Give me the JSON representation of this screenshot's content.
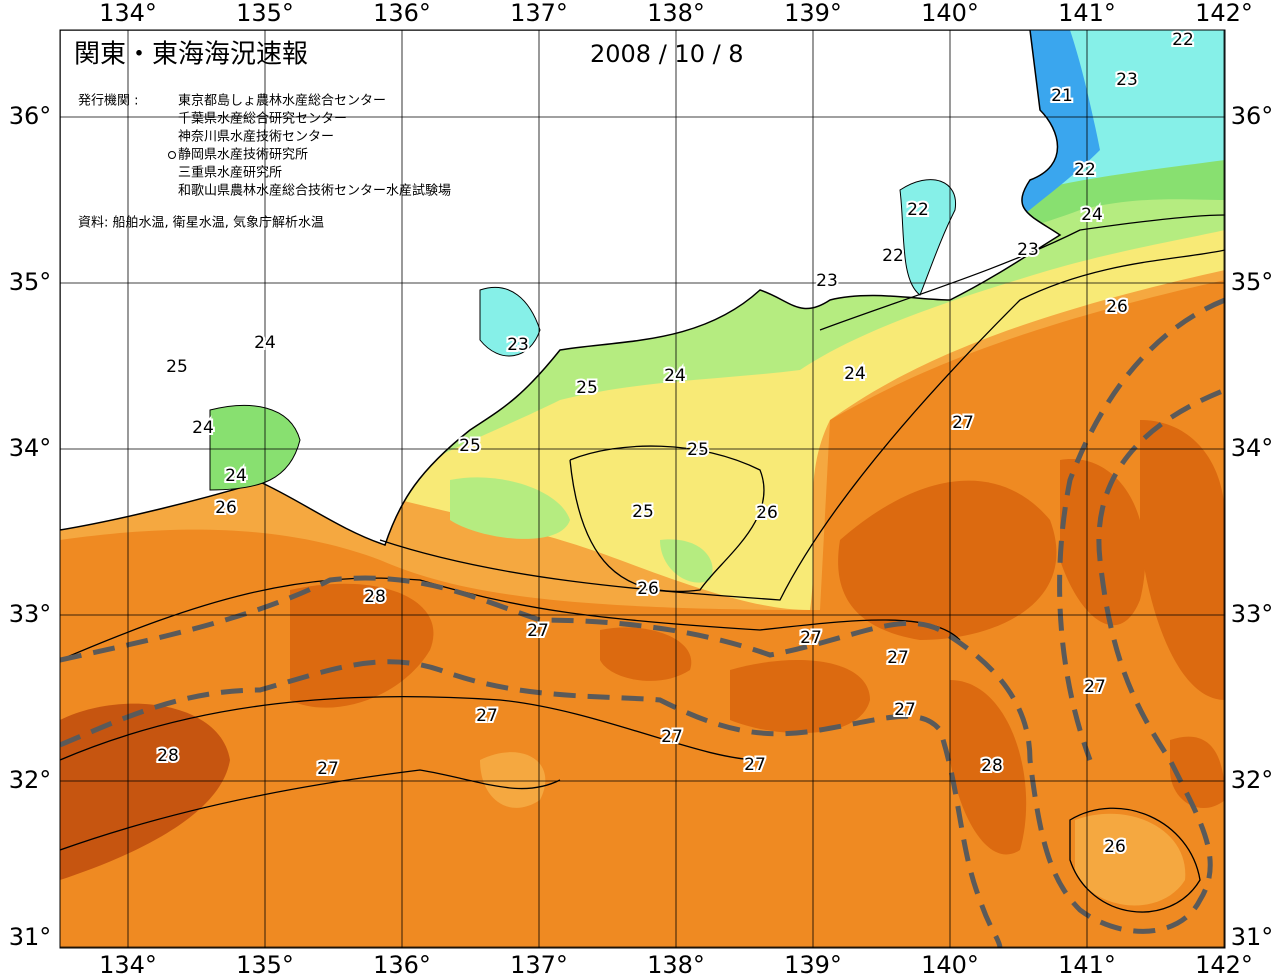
{
  "header": {
    "title": "関東・東海海況速報",
    "date": "2008 / 10 / 8",
    "publisher_label": "発行機関 :",
    "publishers": [
      "東京都島しょ農林水産総合センター",
      "千葉県水産総合研究センター",
      "神奈川県水産技術センター",
      "静岡県水産技術研究所",
      "三重県水産研究所",
      "和歌山県農林水産総合技術センター水産試験場"
    ],
    "source": "資料: 船舶水温, 衛星水温, 気象庁解析水温"
  },
  "map": {
    "lon_ticks": [
      {
        "value": 134,
        "label": "134°"
      },
      {
        "value": 135,
        "label": "135°"
      },
      {
        "value": 136,
        "label": "136°"
      },
      {
        "value": 137,
        "label": "137°"
      },
      {
        "value": 138,
        "label": "138°"
      },
      {
        "value": 139,
        "label": "139°"
      },
      {
        "value": 140,
        "label": "140°"
      },
      {
        "value": 141,
        "label": "141°"
      },
      {
        "value": 142,
        "label": "142°"
      }
    ],
    "lat_ticks": [
      {
        "value": 31,
        "label": "31°"
      },
      {
        "value": 32,
        "label": "32°"
      },
      {
        "value": 33,
        "label": "33°"
      },
      {
        "value": 34,
        "label": "34°"
      },
      {
        "value": 35,
        "label": "35°"
      },
      {
        "value": 36,
        "label": "36°"
      }
    ],
    "contour_labels": [
      22,
      23,
      21,
      22,
      24,
      23,
      22,
      22,
      23,
      26,
      24,
      25,
      23,
      24,
      24,
      25,
      24,
      27,
      25,
      25,
      24,
      26,
      25,
      26,
      26,
      28,
      27,
      27,
      27,
      27,
      27,
      27,
      27,
      28,
      27,
      27,
      28,
      26
    ]
  }
}
